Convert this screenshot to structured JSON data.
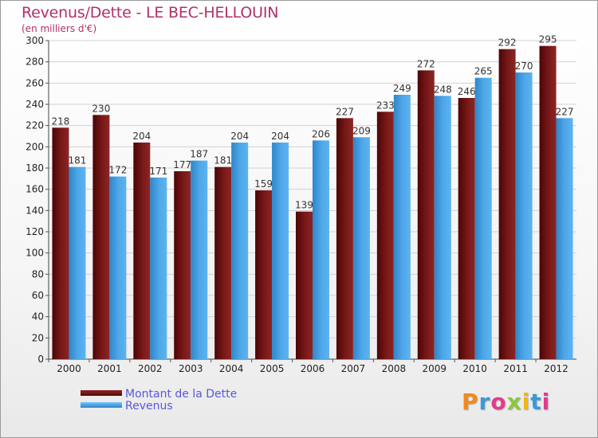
{
  "chart_data": {
    "type": "bar",
    "title": "Revenus/Dette - LE BEC-HELLOUIN",
    "subtitle": "(en milliers d'€)",
    "categories": [
      "2000",
      "2001",
      "2002",
      "2003",
      "2004",
      "2005",
      "2006",
      "2007",
      "2008",
      "2009",
      "2010",
      "2011",
      "2012"
    ],
    "series": [
      {
        "name": "Montant de la Dette",
        "color": "#7a1818",
        "values": [
          218,
          230,
          204,
          177,
          181,
          159,
          139,
          227,
          233,
          272,
          246,
          292,
          295
        ]
      },
      {
        "name": "Revenus",
        "color": "#4da6e8",
        "values": [
          181,
          172,
          171,
          187,
          204,
          204,
          206,
          209,
          249,
          248,
          265,
          270,
          227
        ]
      }
    ],
    "ylim": [
      0,
      300
    ],
    "yticks": [
      0,
      20,
      40,
      60,
      80,
      100,
      120,
      140,
      160,
      180,
      200,
      220,
      240,
      260,
      280,
      300
    ],
    "grid": true,
    "legend_position": "bottom-left",
    "xlabel": "",
    "ylabel": ""
  },
  "logo": {
    "letters": [
      "P",
      "r",
      "o",
      "x",
      "i",
      "t",
      "i"
    ],
    "colors": [
      "#f08a1c",
      "#3a9ad9",
      "#e23b8a",
      "#8cc63f",
      "#f2b716",
      "#3a9ad9",
      "#e23b8a"
    ]
  }
}
